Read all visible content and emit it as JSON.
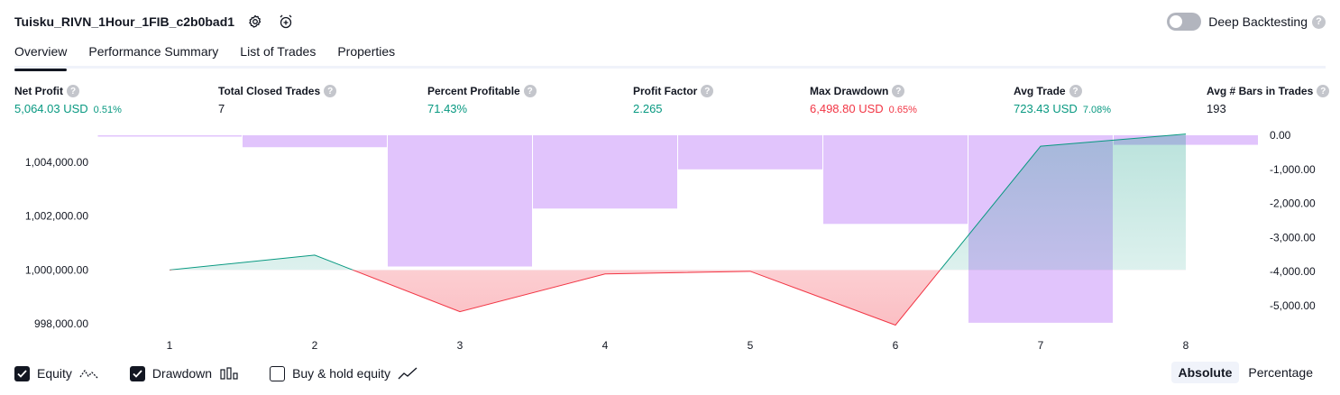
{
  "header": {
    "strategy_name": "Tuisku_RIVN_1Hour_1FIB_c2b0bad1",
    "deep_backtesting_label": "Deep Backtesting",
    "help_glyph": "?"
  },
  "tabs": [
    {
      "label": "Overview",
      "active": true
    },
    {
      "label": "Performance Summary",
      "active": false
    },
    {
      "label": "List of Trades",
      "active": false
    },
    {
      "label": "Properties",
      "active": false
    }
  ],
  "metrics": {
    "net_profit": {
      "label": "Net Profit",
      "value": "5,064.03 USD",
      "pct": "0.51%"
    },
    "total_closed_trades": {
      "label": "Total Closed Trades",
      "value": "7"
    },
    "percent_profitable": {
      "label": "Percent Profitable",
      "value": "71.43%"
    },
    "profit_factor": {
      "label": "Profit Factor",
      "value": "2.265"
    },
    "max_drawdown": {
      "label": "Max Drawdown",
      "value": "6,498.80 USD",
      "pct": "0.65%"
    },
    "avg_trade": {
      "label": "Avg Trade",
      "value": "723.43 USD",
      "pct": "7.08%"
    },
    "avg_bars": {
      "label": "Avg # Bars in Trades",
      "value": "193"
    }
  },
  "chart_data": {
    "type": "line",
    "x": [
      1,
      2,
      3,
      4,
      5,
      6,
      7,
      8
    ],
    "x_tick_labels": [
      "1",
      "2",
      "3",
      "4",
      "5",
      "6",
      "7",
      "8"
    ],
    "baseline": 1000000,
    "left_axis": {
      "ticks": [
        1004000,
        1002000,
        1000000,
        998000
      ],
      "tick_labels": [
        "1,004,000.00",
        "1,002,000.00",
        "1,000,000.00",
        "998,000.00"
      ],
      "range": [
        997500,
        1005000
      ]
    },
    "right_axis": {
      "ticks": [
        0,
        -1000,
        -2000,
        -3000,
        -4000,
        -5000
      ],
      "tick_labels": [
        "0.00",
        "-1,000.00",
        "-2,000.00",
        "-3,000.00",
        "-4,000.00",
        "-5,000.00"
      ],
      "range": [
        -5500,
        0
      ]
    },
    "series": [
      {
        "name": "Equity",
        "axis": "left",
        "values": [
          1000000,
          1000550,
          998450,
          999850,
          999950,
          997950,
          1004600,
          1005050
        ],
        "color_up": "#089981",
        "color_down": "#f23645"
      },
      {
        "name": "Drawdown",
        "axis": "right",
        "bars": [
          {
            "from": 0.5,
            "to": 1.5,
            "value": 0
          },
          {
            "from": 1.5,
            "to": 2.5,
            "value": -350
          },
          {
            "from": 2.5,
            "to": 3.5,
            "value": -3850
          },
          {
            "from": 3.5,
            "to": 4.5,
            "value": -2150
          },
          {
            "from": 4.5,
            "to": 5.5,
            "value": -1000
          },
          {
            "from": 5.5,
            "to": 6.5,
            "value": -2600
          },
          {
            "from": 6.5,
            "to": 7.5,
            "value": -5500
          },
          {
            "from": 7.5,
            "to": 8.5,
            "value": -280
          }
        ],
        "color": "#e1c4fc"
      }
    ],
    "grid": false,
    "legend": "bottom-left"
  },
  "legend": {
    "equity_label": "Equity",
    "drawdown_label": "Drawdown",
    "buy_hold_label": "Buy & hold equity",
    "equity_checked": true,
    "drawdown_checked": true,
    "buy_hold_checked": false
  },
  "modes": {
    "absolute_label": "Absolute",
    "percentage_label": "Percentage",
    "active": "absolute"
  }
}
